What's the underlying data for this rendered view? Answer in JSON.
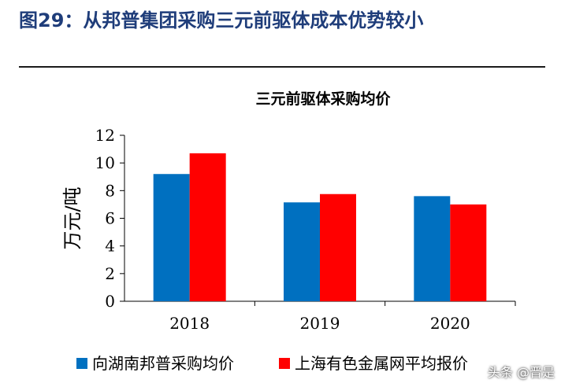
{
  "figure_title": "图29：从邦普集团采购三元前驱体成本优势较小",
  "watermark": "头条 @晋是",
  "chart_data": {
    "type": "bar",
    "title": "三元前驱体采购均价",
    "ylabel": "万元/吨",
    "categories": [
      "2018",
      "2019",
      "2020"
    ],
    "ylim": [
      0,
      12
    ],
    "yticks": [
      0,
      2,
      4,
      6,
      8,
      10,
      12
    ],
    "series": [
      {
        "name": "向湖南邦普采购均价",
        "color": "#0070c0",
        "values": [
          9.2,
          7.15,
          7.6
        ]
      },
      {
        "name": "上海有色金属网平均报价",
        "color": "#ff0000",
        "values": [
          10.7,
          7.75,
          7.0
        ]
      }
    ],
    "grid": false,
    "legend": "bottom"
  }
}
